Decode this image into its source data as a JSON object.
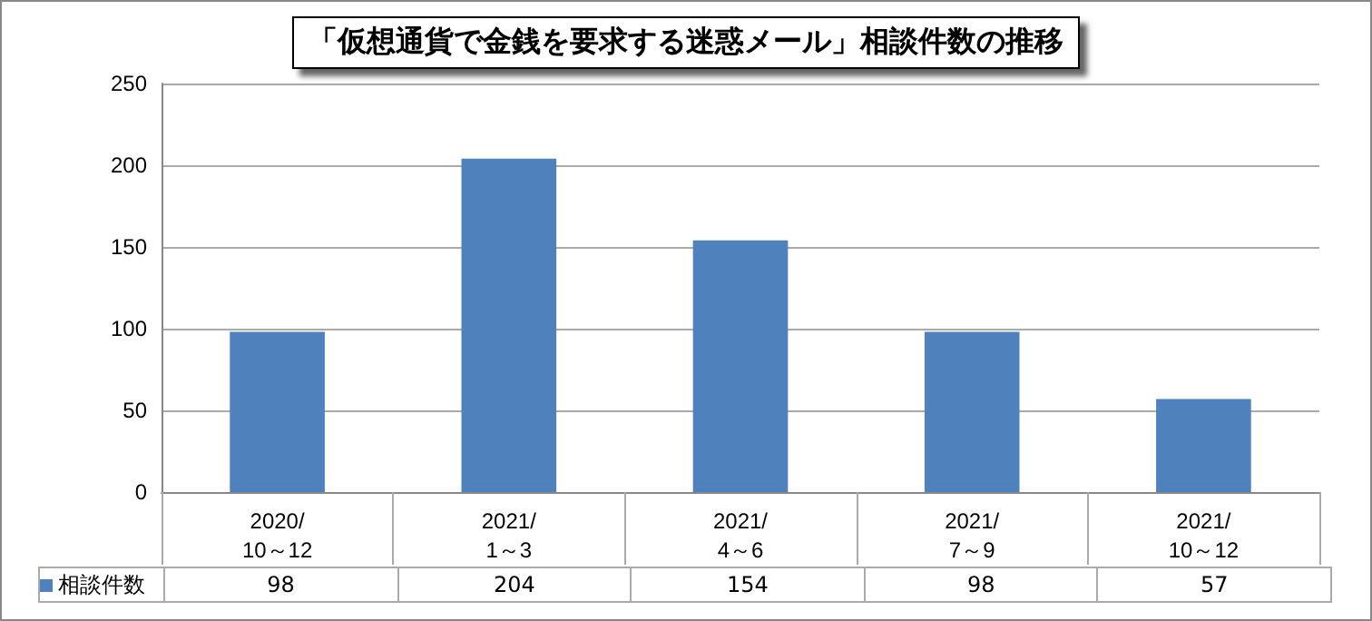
{
  "chart_data": {
    "type": "bar",
    "title": "「仮想通貨で金銭を要求する迷惑メール」相談件数の推移",
    "categories": [
      "2020/\n10～12",
      "2021/\n1～3",
      "2021/\n4～6",
      "2021/\n7～9",
      "2021/\n10～12"
    ],
    "series": [
      {
        "name": "相談件数",
        "color": "#4f81bd",
        "values": [
          98,
          204,
          154,
          98,
          57
        ]
      }
    ],
    "ylim": [
      0,
      250
    ],
    "yticks": [
      0,
      50,
      100,
      150,
      200,
      250
    ],
    "grid": "y",
    "legend": "bottom",
    "data_labels": true
  }
}
